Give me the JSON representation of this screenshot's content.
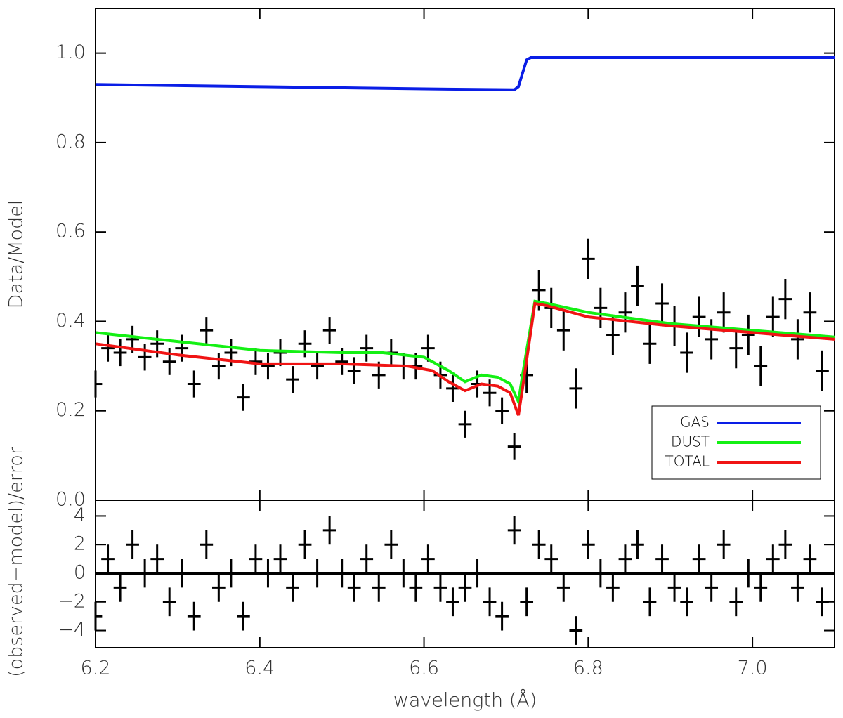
{
  "chart_data": [
    {
      "type": "line",
      "ylabel": "Data/Model",
      "xlim": [
        6.2,
        7.1
      ],
      "ylim": [
        0,
        1.1
      ],
      "yticks": [
        {
          "value": 0,
          "label": "0.0"
        },
        {
          "value": 0.2,
          "label": "0.2"
        },
        {
          "value": 0.4,
          "label": "0.4"
        },
        {
          "value": 0.6,
          "label": "0.6"
        },
        {
          "value": 0.8,
          "label": "0.8"
        },
        {
          "value": 1.0,
          "label": "1.0"
        }
      ],
      "legend": "lower right",
      "series": [
        {
          "name": "GAS",
          "color": "#0a1ee6",
          "x": [
            6.2,
            6.4,
            6.6,
            6.71,
            6.715,
            6.72,
            6.725,
            6.73,
            6.9,
            7.1
          ],
          "values": [
            0.93,
            0.925,
            0.92,
            0.918,
            0.925,
            0.955,
            0.985,
            0.99,
            0.99,
            0.99
          ]
        },
        {
          "name": "DUST",
          "color": "#14f014",
          "x": [
            6.2,
            6.3,
            6.4,
            6.5,
            6.55,
            6.6,
            6.63,
            6.65,
            6.67,
            6.69,
            6.705,
            6.715,
            6.72,
            6.735,
            6.75,
            6.8,
            6.9,
            7.0,
            7.1
          ],
          "values": [
            0.375,
            0.355,
            0.335,
            0.33,
            0.33,
            0.32,
            0.29,
            0.265,
            0.28,
            0.275,
            0.26,
            0.22,
            0.28,
            0.445,
            0.44,
            0.42,
            0.395,
            0.38,
            0.365
          ]
        },
        {
          "name": "TOTAL",
          "color": "#f01414",
          "x": [
            6.2,
            6.3,
            6.4,
            6.5,
            6.58,
            6.61,
            6.63,
            6.65,
            6.67,
            6.69,
            6.705,
            6.715,
            6.72,
            6.735,
            6.75,
            6.8,
            6.9,
            7.0,
            7.1
          ],
          "values": [
            0.35,
            0.325,
            0.305,
            0.305,
            0.3,
            0.29,
            0.265,
            0.245,
            0.26,
            0.255,
            0.24,
            0.19,
            0.25,
            0.44,
            0.435,
            0.41,
            0.39,
            0.375,
            0.36
          ]
        }
      ],
      "points": {
        "color": "#000000",
        "xerr": 0.008,
        "x": [
          6.2,
          6.215,
          6.23,
          6.245,
          6.26,
          6.275,
          6.29,
          6.305,
          6.32,
          6.335,
          6.35,
          6.365,
          6.38,
          6.395,
          6.41,
          6.425,
          6.44,
          6.455,
          6.47,
          6.485,
          6.5,
          6.515,
          6.53,
          6.545,
          6.56,
          6.575,
          6.59,
          6.605,
          6.62,
          6.635,
          6.65,
          6.665,
          6.68,
          6.695,
          6.71,
          6.725,
          6.74,
          6.755,
          6.77,
          6.785,
          6.8,
          6.815,
          6.83,
          6.845,
          6.86,
          6.875,
          6.89,
          6.905,
          6.92,
          6.935,
          6.95,
          6.965,
          6.98,
          6.995,
          7.01,
          7.025,
          7.04,
          7.055,
          7.07,
          7.085
        ],
        "y": [
          0.26,
          0.34,
          0.33,
          0.36,
          0.32,
          0.35,
          0.31,
          0.34,
          0.26,
          0.38,
          0.3,
          0.33,
          0.23,
          0.31,
          0.3,
          0.33,
          0.27,
          0.35,
          0.3,
          0.38,
          0.31,
          0.29,
          0.34,
          0.28,
          0.33,
          0.3,
          0.3,
          0.34,
          0.28,
          0.25,
          0.17,
          0.26,
          0.24,
          0.2,
          0.12,
          0.28,
          0.47,
          0.43,
          0.38,
          0.25,
          0.54,
          0.43,
          0.37,
          0.42,
          0.48,
          0.35,
          0.44,
          0.39,
          0.33,
          0.41,
          0.36,
          0.42,
          0.34,
          0.37,
          0.3,
          0.41,
          0.45,
          0.36,
          0.42,
          0.29
        ],
        "yerr": [
          0.03,
          0.03,
          0.03,
          0.03,
          0.03,
          0.03,
          0.03,
          0.03,
          0.03,
          0.03,
          0.03,
          0.03,
          0.03,
          0.03,
          0.03,
          0.03,
          0.03,
          0.03,
          0.03,
          0.03,
          0.03,
          0.03,
          0.03,
          0.03,
          0.03,
          0.03,
          0.03,
          0.03,
          0.03,
          0.03,
          0.03,
          0.03,
          0.03,
          0.03,
          0.03,
          0.04,
          0.045,
          0.045,
          0.045,
          0.045,
          0.045,
          0.045,
          0.045,
          0.045,
          0.045,
          0.045,
          0.045,
          0.045,
          0.045,
          0.045,
          0.045,
          0.045,
          0.045,
          0.045,
          0.045,
          0.045,
          0.045,
          0.045,
          0.045,
          0.045
        ]
      }
    },
    {
      "type": "line",
      "ylabel": "(observed−model)/error",
      "xlabel": "wavelength (Å)",
      "xlim": [
        6.2,
        7.1
      ],
      "xticks": [
        6.2,
        6.4,
        6.6,
        6.8,
        {
          "value": 7.0,
          "label": "7.0"
        }
      ],
      "ylim": [
        -5.2,
        5.1
      ],
      "yticks": [
        {
          "value": -4,
          "label": "−4"
        },
        {
          "value": -2,
          "label": "−2"
        },
        0,
        2,
        4
      ],
      "series": [
        {
          "color": "#000000",
          "x": [
            6.2,
            7.1
          ],
          "values": [
            0,
            0
          ]
        }
      ],
      "points": {
        "color": "#000000",
        "xerr": 0.008,
        "x": [
          6.2,
          6.215,
          6.23,
          6.245,
          6.26,
          6.275,
          6.29,
          6.305,
          6.32,
          6.335,
          6.35,
          6.365,
          6.38,
          6.395,
          6.41,
          6.425,
          6.44,
          6.455,
          6.47,
          6.485,
          6.5,
          6.515,
          6.53,
          6.545,
          6.56,
          6.575,
          6.59,
          6.605,
          6.62,
          6.635,
          6.65,
          6.665,
          6.68,
          6.695,
          6.71,
          6.725,
          6.74,
          6.755,
          6.77,
          6.785,
          6.8,
          6.815,
          6.83,
          6.845,
          6.86,
          6.875,
          6.89,
          6.905,
          6.92,
          6.935,
          6.95,
          6.965,
          6.98,
          6.995,
          7.01,
          7.025,
          7.04,
          7.055,
          7.07,
          7.085
        ],
        "y": [
          -3,
          1,
          -1,
          2,
          0,
          1,
          -2,
          0,
          -3,
          2,
          -1,
          0,
          -3,
          1,
          0,
          1,
          -1,
          2,
          0,
          3,
          0,
          -1,
          1,
          -1,
          2,
          0,
          -1,
          1,
          -1,
          -2,
          -1,
          0,
          -2,
          -3,
          3,
          -2,
          2,
          1,
          -1,
          -4,
          2,
          0,
          -1,
          1,
          2,
          -2,
          1,
          -1,
          -2,
          1,
          -1,
          2,
          -2,
          0,
          -1,
          1,
          2,
          -1,
          1,
          -2
        ],
        "yerr": [
          1,
          1,
          1,
          1,
          1,
          1,
          1,
          1,
          1,
          1,
          1,
          1,
          1,
          1,
          1,
          1,
          1,
          1,
          1,
          1,
          1,
          1,
          1,
          1,
          1,
          1,
          1,
          1,
          1,
          1,
          1,
          1,
          1,
          1,
          1,
          1,
          1,
          1,
          1,
          1,
          1,
          1,
          1,
          1,
          1,
          1,
          1,
          1,
          1,
          1,
          1,
          1,
          1,
          1,
          1,
          1,
          1,
          1,
          1,
          1
        ]
      }
    }
  ]
}
